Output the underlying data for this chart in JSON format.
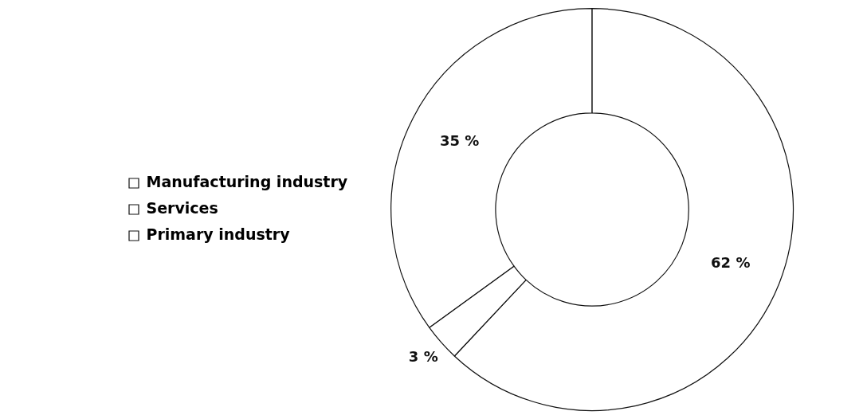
{
  "chart_data": {
    "type": "donut",
    "categories": [
      "Manufacturing industry",
      "Services",
      "Primary industry"
    ],
    "values": [
      35,
      62,
      3
    ],
    "colors": [
      "#ffffff",
      "#ffffff",
      "#ffffff"
    ],
    "value_labels": [
      "35 %",
      "62 %",
      "3 %"
    ],
    "legend": "left"
  }
}
